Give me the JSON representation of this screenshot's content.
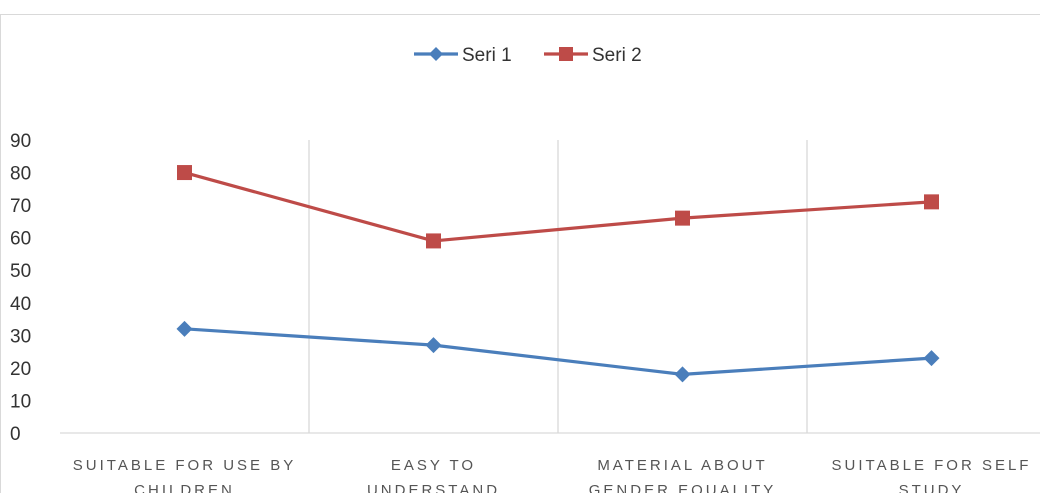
{
  "chart_data": {
    "type": "line",
    "categories": [
      [
        "SUITABLE FOR USE BY",
        "CHILDREN"
      ],
      [
        "EASY TO",
        "UNDERSTAND"
      ],
      [
        "MATERIAL ABOUT",
        "GENDER EQUALITY"
      ],
      [
        "SUITABLE FOR SELF",
        "STUDY"
      ]
    ],
    "series": [
      {
        "name": "Seri 1",
        "values": [
          32,
          27,
          18,
          23
        ],
        "color": "#4a7ebb",
        "marker": "diamond"
      },
      {
        "name": "Seri 2",
        "values": [
          80,
          59,
          66,
          71
        ],
        "color": "#be4b48",
        "marker": "square"
      }
    ],
    "ylim": [
      0,
      90
    ],
    "yticks": [
      "0",
      "10",
      "20",
      "30",
      "40",
      "50",
      "60",
      "70",
      "80",
      "90"
    ],
    "legend_position": "top",
    "grid": "vertical category separators",
    "title": "",
    "xlabel": "",
    "ylabel": ""
  }
}
